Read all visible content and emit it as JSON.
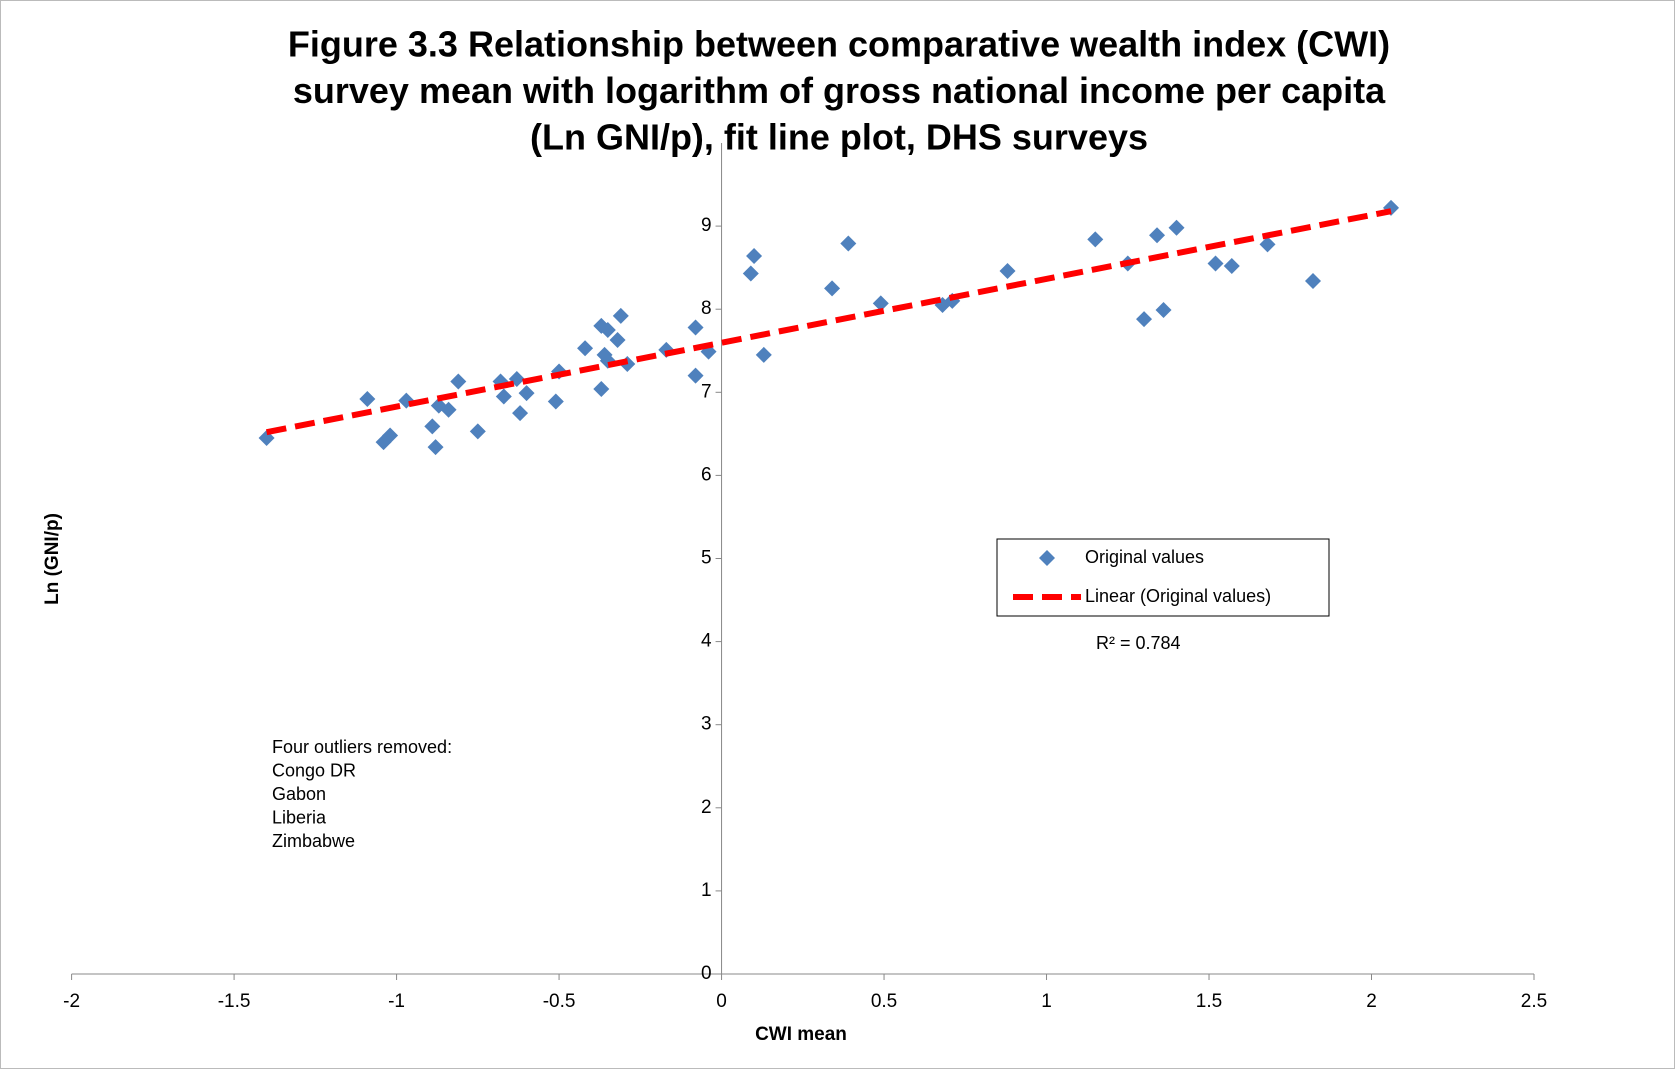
{
  "chart_data": {
    "type": "scatter",
    "title": [
      "Figure 3.3  Relationship between comparative wealth index (CWI)",
      "survey mean with logarithm of gross national income per capita",
      "(Ln GNI/p), fit line plot, DHS surveys"
    ],
    "x_label": "CWI mean",
    "y_label": "Ln (GNI/p)",
    "xlim": [
      -2,
      2.5
    ],
    "ylim": [
      0,
      10
    ],
    "xticks": [
      -2,
      -1.5,
      -1,
      -0.5,
      0,
      0.5,
      1,
      1.5,
      2,
      2.5
    ],
    "yticks": [
      0,
      1,
      2,
      3,
      4,
      5,
      6,
      7,
      8,
      9
    ],
    "legend": "right",
    "series": [
      {
        "name": "Original values",
        "color": "#4f81bd",
        "x": [
          -1.4,
          -1.09,
          -1.04,
          -1.02,
          -0.97,
          -0.89,
          -0.88,
          -0.87,
          -0.84,
          -0.81,
          -0.75,
          -0.68,
          -0.67,
          -0.63,
          -0.62,
          -0.6,
          -0.51,
          -0.5,
          -0.42,
          -0.37,
          -0.37,
          -0.36,
          -0.35,
          -0.35,
          -0.32,
          -0.31,
          -0.29,
          -0.17,
          -0.08,
          -0.08,
          -0.04,
          0.09,
          0.1,
          0.13,
          0.34,
          0.39,
          0.49,
          0.68,
          0.71,
          0.88,
          1.15,
          1.25,
          1.3,
          1.34,
          1.36,
          1.4,
          1.52,
          1.57,
          1.68,
          1.82,
          2.06
        ],
        "values": [
          6.45,
          6.92,
          6.4,
          6.48,
          6.9,
          6.59,
          6.34,
          6.84,
          6.79,
          7.13,
          6.53,
          7.13,
          6.95,
          7.16,
          6.75,
          6.99,
          6.89,
          7.25,
          7.53,
          7.8,
          7.04,
          7.45,
          7.38,
          7.75,
          7.63,
          7.92,
          7.34,
          7.51,
          7.78,
          7.2,
          7.49,
          8.43,
          8.64,
          7.45,
          8.25,
          8.79,
          8.07,
          8.05,
          8.1,
          8.46,
          8.84,
          8.55,
          7.88,
          8.89,
          7.99,
          8.98,
          8.55,
          8.52,
          8.78,
          8.34,
          9.22
        ]
      },
      {
        "name": "Linear (Original values)",
        "color": "#ff0000",
        "x": [
          -1.4,
          2.06
        ],
        "values": [
          6.52,
          9.18
        ]
      }
    ],
    "r_squared": "R² = 0.784",
    "annotation": [
      "Four outliers removed:",
      "Congo DR",
      "Gabon",
      "Liberia",
      "Zimbabwe"
    ]
  }
}
